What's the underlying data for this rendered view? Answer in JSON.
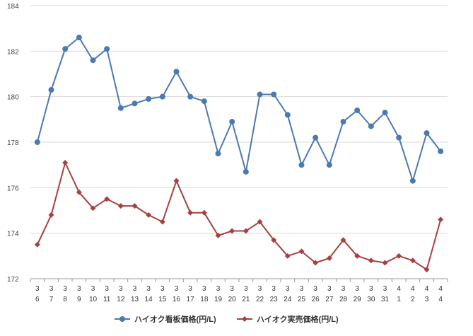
{
  "chart_data": {
    "type": "line",
    "title": "",
    "xlabel": "",
    "ylabel": "",
    "ylim": [
      172,
      184
    ],
    "yticks": [
      172,
      174,
      176,
      178,
      180,
      182,
      184
    ],
    "grid": true,
    "legend_position": "bottom",
    "categories": [
      [
        "3",
        "6"
      ],
      [
        "3",
        "7"
      ],
      [
        "3",
        "8"
      ],
      [
        "3",
        "9"
      ],
      [
        "3",
        "10"
      ],
      [
        "3",
        "11"
      ],
      [
        "3",
        "12"
      ],
      [
        "3",
        "13"
      ],
      [
        "3",
        "14"
      ],
      [
        "3",
        "15"
      ],
      [
        "3",
        "16"
      ],
      [
        "3",
        "17"
      ],
      [
        "3",
        "18"
      ],
      [
        "3",
        "19"
      ],
      [
        "3",
        "20"
      ],
      [
        "3",
        "21"
      ],
      [
        "3",
        "22"
      ],
      [
        "3",
        "23"
      ],
      [
        "3",
        "24"
      ],
      [
        "3",
        "25"
      ],
      [
        "3",
        "26"
      ],
      [
        "3",
        "27"
      ],
      [
        "3",
        "28"
      ],
      [
        "3",
        "29"
      ],
      [
        "3",
        "30"
      ],
      [
        "3",
        "31"
      ],
      [
        "4",
        "1"
      ],
      [
        "4",
        "2"
      ],
      [
        "4",
        "3"
      ],
      [
        "4",
        "4"
      ]
    ],
    "series": [
      {
        "name": "ハイオク看板価格(円/L)",
        "color": "#4a7ab0",
        "marker": "circle",
        "values": [
          178.0,
          180.3,
          182.1,
          182.6,
          181.6,
          182.1,
          179.5,
          179.7,
          179.9,
          180.0,
          181.1,
          180.0,
          179.8,
          177.5,
          178.9,
          176.7,
          180.1,
          180.1,
          179.2,
          177.0,
          178.2,
          177.0,
          178.9,
          179.4,
          178.7,
          179.3,
          178.2,
          176.3,
          178.4,
          177.6
        ]
      },
      {
        "name": "ハイオク実売価格(円/L)",
        "color": "#a84040",
        "marker": "diamond",
        "values": [
          173.5,
          174.8,
          177.1,
          175.8,
          175.1,
          175.5,
          175.2,
          175.2,
          174.8,
          174.5,
          176.3,
          174.9,
          174.9,
          173.9,
          174.1,
          174.1,
          174.5,
          173.7,
          173.0,
          173.2,
          172.7,
          172.9,
          173.7,
          173.0,
          172.8,
          172.7,
          173.0,
          172.8,
          172.4,
          174.6
        ]
      }
    ]
  }
}
